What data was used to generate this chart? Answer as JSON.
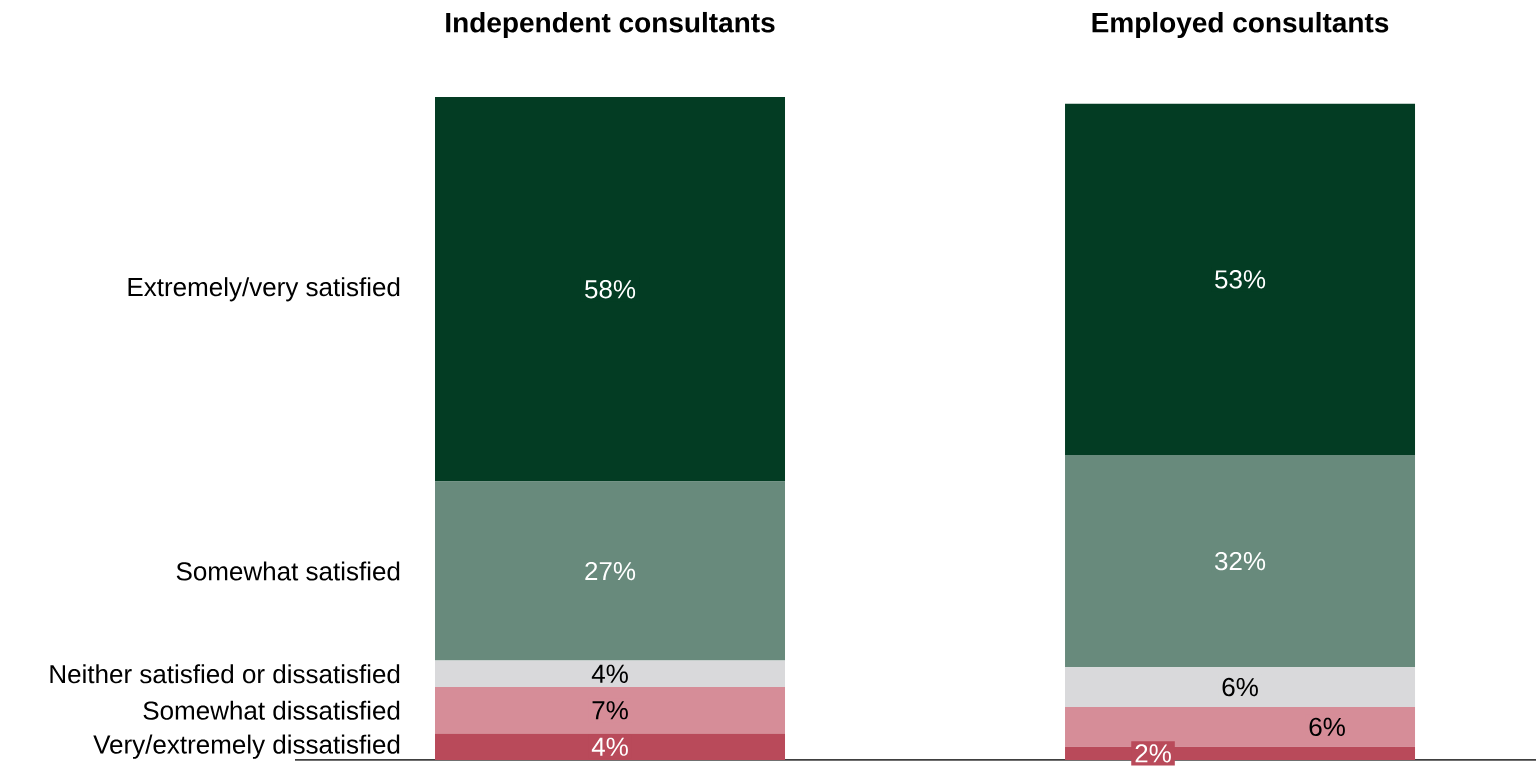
{
  "chart_data": {
    "type": "bar",
    "stacked": true,
    "legend": false,
    "categories": [
      "Independent consultants",
      "Employed consultants"
    ],
    "series": [
      {
        "name": "Very/extremely dissatisfied",
        "color": "#b94a5a",
        "values": [
          4,
          2
        ],
        "value_labels": [
          "4%",
          "2%"
        ]
      },
      {
        "name": "Somewhat dissatisfied",
        "color": "#d68d98",
        "values": [
          7,
          6
        ],
        "value_labels": [
          "7%",
          "6%"
        ]
      },
      {
        "name": "Neither satisfied or dissatisfied",
        "color": "#d9d9db",
        "values": [
          4,
          6
        ],
        "value_labels": [
          "4%",
          "6%"
        ]
      },
      {
        "name": "Somewhat satisfied",
        "color": "#688a7c",
        "values": [
          27,
          32
        ],
        "value_labels": [
          "27%",
          "32%"
        ]
      },
      {
        "name": "Extremely/very satisfied",
        "color": "#033c23",
        "values": [
          58,
          53
        ],
        "value_labels": [
          "58%",
          "53%"
        ]
      }
    ]
  }
}
